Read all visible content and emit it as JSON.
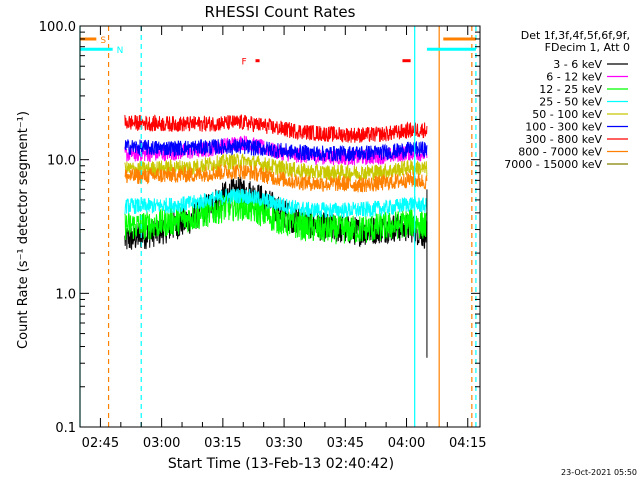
{
  "chart_data": {
    "type": "line",
    "title": "RHESSI Count Rates",
    "xlabel": "Start Time (13-Feb-13 02:40:42)",
    "ylabel": "Count Rate (s⁻¹ detector segment⁻¹)",
    "yscale": "log",
    "ylim": [
      0.1,
      100.0
    ],
    "xlim": [
      "02:40",
      "04:18"
    ],
    "x_ticks": [
      "02:45",
      "03:00",
      "03:15",
      "03:30",
      "03:45",
      "04:00",
      "04:15"
    ],
    "y_ticks": [
      "0.1",
      "1.0",
      "10.0",
      "100.0"
    ],
    "legend_header": [
      "Det 1f,3f,4f,5f,6f,9f,",
      "FDecim 1, Att 0"
    ],
    "legend_position": "right",
    "timestamp": "23-Oct-2021 05:50",
    "data_start": "02:51",
    "data_end": "04:05",
    "series": [
      {
        "name": "3 - 6 keV",
        "color": "#000000",
        "values": [
          2.5,
          2.7,
          2.9,
          3.2,
          3.6,
          4.5,
          5.4,
          5.9,
          5.2,
          4.3,
          3.6,
          3.3,
          3.1,
          3.0,
          2.9,
          3.0,
          3.1,
          3.1,
          2.7
        ]
      },
      {
        "name": "6 - 12 keV",
        "color": "#ff00ff",
        "values": [
          11.0,
          11.0,
          11.1,
          11.3,
          11.5,
          12.0,
          12.8,
          13.5,
          12.5,
          11.5,
          10.9,
          10.6,
          10.5,
          10.4,
          10.4,
          10.5,
          10.8,
          11.3,
          11.0
        ]
      },
      {
        "name": "12 - 25 keV",
        "color": "#00ff00",
        "values": [
          3.2,
          3.2,
          3.3,
          3.5,
          3.7,
          4.0,
          4.4,
          4.5,
          4.1,
          3.6,
          3.3,
          3.1,
          3.0,
          3.0,
          3.0,
          3.1,
          3.2,
          3.4,
          3.2
        ]
      },
      {
        "name": "25 - 50 keV",
        "color": "#00ffff",
        "values": [
          4.5,
          4.5,
          4.5,
          4.6,
          4.7,
          5.0,
          5.3,
          5.4,
          5.1,
          4.7,
          4.4,
          4.2,
          4.2,
          4.2,
          4.2,
          4.3,
          4.4,
          4.7,
          4.5
        ]
      },
      {
        "name": "50 - 100 keV",
        "color": "#c8c800",
        "values": [
          8.5,
          8.5,
          8.6,
          8.7,
          8.8,
          9.2,
          9.6,
          9.8,
          9.3,
          8.8,
          8.4,
          8.1,
          8.0,
          8.0,
          8.0,
          8.1,
          8.3,
          8.8,
          8.5
        ]
      },
      {
        "name": "100 - 300 keV",
        "color": "#0000ff",
        "values": [
          12.5,
          12.3,
          12.2,
          12.2,
          12.3,
          12.4,
          12.5,
          12.5,
          12.2,
          11.8,
          11.4,
          11.2,
          11.1,
          11.1,
          11.2,
          11.3,
          11.5,
          11.9,
          12.0
        ]
      },
      {
        "name": "300 - 800 keV",
        "color": "#ff0000",
        "values": [
          19.0,
          18.8,
          18.6,
          18.5,
          18.5,
          18.6,
          18.8,
          19.0,
          18.2,
          17.3,
          16.5,
          16.0,
          15.6,
          15.4,
          15.3,
          15.4,
          15.8,
          16.6,
          16.8
        ]
      },
      {
        "name": "800 - 7000 keV",
        "color": "#ff8000",
        "values": [
          7.5,
          7.5,
          7.6,
          7.7,
          7.7,
          7.9,
          8.1,
          8.2,
          7.8,
          7.3,
          6.9,
          6.7,
          6.6,
          6.6,
          6.5,
          6.6,
          6.8,
          7.1,
          6.8
        ]
      },
      {
        "name": "7000 - 15000 keV",
        "color": "#808000",
        "values": []
      }
    ],
    "annotations": [
      {
        "label": "S",
        "color": "#ff8000",
        "bar_start": "02:40",
        "bar_end": "02:44",
        "y": 80.0
      },
      {
        "label": "N",
        "color": "#00ffff",
        "bar_start": "02:40",
        "bar_end": "02:48",
        "y": 67.0
      },
      {
        "label": "F",
        "color": "#ff0000",
        "bar_start": "03:23",
        "bar_end": "03:24",
        "y": 55.0
      },
      {
        "label": "",
        "color": "#ff0000",
        "bar_start": "03:59",
        "bar_end": "04:01",
        "y": 55.0
      },
      {
        "label": "",
        "color": "#ff8000",
        "bar_start": "04:09",
        "bar_end": "04:17",
        "y": 80.0
      },
      {
        "label": "",
        "color": "#00ffff",
        "bar_start": "04:05",
        "bar_end": "04:17",
        "y": 67.0
      }
    ],
    "vertical_markers": [
      {
        "time": "02:40",
        "color": "#00ffff",
        "style": "solid"
      },
      {
        "time": "02:47",
        "color": "#ff8000",
        "style": "dashed"
      },
      {
        "time": "02:55",
        "color": "#00ffff",
        "style": "dashed"
      },
      {
        "time": "04:02",
        "color": "#00ffff",
        "style": "solid"
      },
      {
        "time": "04:08",
        "color": "#ff8000",
        "style": "solid"
      },
      {
        "time": "04:16",
        "color": "#ff8000",
        "style": "dashed"
      },
      {
        "time": "04:17",
        "color": "#00ffff",
        "style": "dashed"
      }
    ]
  }
}
